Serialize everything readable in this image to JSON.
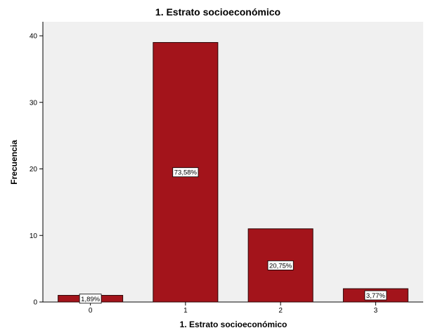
{
  "chart_data": {
    "type": "bar",
    "title": "1. Estrato socioeconómico",
    "xlabel": "1. Estrato socioeconómico",
    "ylabel": "Frecuencia",
    "categories": [
      "0",
      "1",
      "2",
      "3"
    ],
    "values": [
      1,
      39,
      11,
      2
    ],
    "data_labels": [
      "1,89%",
      "73,58%",
      "20,75%",
      "3,77%"
    ],
    "yticks": [
      "0",
      "10",
      "20",
      "30",
      "40"
    ],
    "ylim": [
      0,
      42
    ],
    "grid": false,
    "colors": {
      "bar_fill": "#a3141b",
      "bar_stroke": "#2b0505",
      "plot_background": "#f0f0f0",
      "page_background": "#ffffff"
    }
  }
}
